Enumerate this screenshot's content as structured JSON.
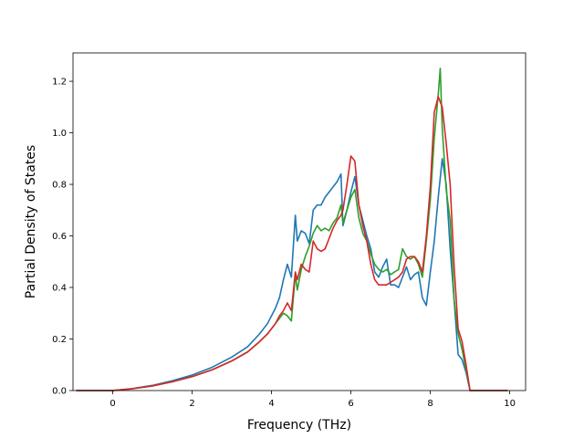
{
  "chart_data": {
    "type": "line",
    "title": "",
    "xlabel": "Frequency (THz)",
    "ylabel": "Partial Density of States",
    "xlim": [
      -1.0,
      10.4
    ],
    "ylim": [
      0.0,
      1.31
    ],
    "xticks": [
      0,
      2,
      4,
      6,
      8,
      10
    ],
    "yticks": [
      0.0,
      0.2,
      0.4,
      0.6,
      0.8,
      1.0,
      1.2
    ],
    "xtick_labels": [
      "0",
      "2",
      "4",
      "6",
      "8",
      "10"
    ],
    "ytick_labels": [
      "0.0",
      "0.2",
      "0.4",
      "0.6",
      "0.8",
      "1.0",
      "1.2"
    ],
    "grid": false,
    "series": [
      {
        "color": "#1f77b4",
        "x": [
          -0.92,
          0.0,
          0.5,
          1.0,
          1.5,
          2.0,
          2.5,
          3.0,
          3.4,
          3.7,
          3.9,
          4.1,
          4.2,
          4.3,
          4.4,
          4.5,
          4.6,
          4.65,
          4.75,
          4.85,
          4.95,
          5.05,
          5.15,
          5.25,
          5.35,
          5.45,
          5.55,
          5.65,
          5.75,
          5.8,
          5.9,
          6.0,
          6.1,
          6.2,
          6.3,
          6.4,
          6.5,
          6.6,
          6.7,
          6.8,
          6.9,
          7.0,
          7.1,
          7.2,
          7.3,
          7.4,
          7.5,
          7.6,
          7.7,
          7.8,
          7.9,
          8.0,
          8.1,
          8.2,
          8.3,
          8.4,
          8.5,
          8.6,
          8.7,
          8.8,
          8.9,
          9.0,
          9.2,
          9.5,
          9.95
        ],
        "y": [
          0.0,
          0.0,
          0.008,
          0.02,
          0.038,
          0.06,
          0.09,
          0.13,
          0.17,
          0.22,
          0.26,
          0.32,
          0.36,
          0.43,
          0.49,
          0.44,
          0.68,
          0.58,
          0.62,
          0.61,
          0.57,
          0.7,
          0.72,
          0.72,
          0.75,
          0.77,
          0.79,
          0.81,
          0.84,
          0.64,
          0.7,
          0.77,
          0.83,
          0.72,
          0.66,
          0.6,
          0.55,
          0.46,
          0.44,
          0.48,
          0.51,
          0.41,
          0.41,
          0.4,
          0.44,
          0.48,
          0.43,
          0.45,
          0.46,
          0.36,
          0.33,
          0.46,
          0.58,
          0.75,
          0.9,
          0.8,
          0.55,
          0.35,
          0.14,
          0.12,
          0.07,
          0.0,
          0.0,
          0.0,
          0.0
        ]
      },
      {
        "color": "#2ca02c",
        "x": [
          -0.92,
          0.0,
          0.5,
          1.0,
          1.5,
          2.0,
          2.5,
          3.0,
          3.4,
          3.7,
          3.9,
          4.1,
          4.2,
          4.3,
          4.4,
          4.5,
          4.6,
          4.65,
          4.75,
          4.85,
          4.95,
          5.05,
          5.15,
          5.25,
          5.35,
          5.45,
          5.55,
          5.65,
          5.75,
          5.8,
          5.9,
          6.0,
          6.1,
          6.2,
          6.3,
          6.4,
          6.5,
          6.6,
          6.7,
          6.8,
          6.9,
          7.0,
          7.1,
          7.2,
          7.3,
          7.4,
          7.5,
          7.6,
          7.7,
          7.8,
          7.9,
          8.0,
          8.1,
          8.2,
          8.25,
          8.3,
          8.4,
          8.5,
          8.6,
          8.7,
          8.8,
          8.9,
          9.0,
          9.2,
          9.5,
          9.95
        ],
        "y": [
          0.0,
          0.0,
          0.007,
          0.018,
          0.034,
          0.054,
          0.08,
          0.115,
          0.15,
          0.19,
          0.22,
          0.26,
          0.28,
          0.3,
          0.29,
          0.27,
          0.45,
          0.39,
          0.47,
          0.52,
          0.56,
          0.61,
          0.64,
          0.62,
          0.63,
          0.62,
          0.65,
          0.67,
          0.72,
          0.65,
          0.7,
          0.75,
          0.78,
          0.67,
          0.61,
          0.58,
          0.53,
          0.49,
          0.47,
          0.46,
          0.47,
          0.45,
          0.46,
          0.47,
          0.55,
          0.52,
          0.51,
          0.52,
          0.49,
          0.44,
          0.58,
          0.74,
          0.98,
          1.15,
          1.25,
          1.02,
          0.78,
          0.66,
          0.35,
          0.22,
          0.16,
          0.08,
          0.0,
          0.0,
          0.0,
          0.0
        ]
      },
      {
        "color": "#d62728",
        "x": [
          -0.92,
          0.0,
          0.5,
          1.0,
          1.5,
          2.0,
          2.5,
          3.0,
          3.4,
          3.7,
          3.9,
          4.1,
          4.2,
          4.3,
          4.4,
          4.5,
          4.6,
          4.65,
          4.75,
          4.85,
          4.95,
          5.05,
          5.15,
          5.25,
          5.35,
          5.45,
          5.55,
          5.65,
          5.75,
          5.8,
          5.9,
          6.0,
          6.1,
          6.2,
          6.3,
          6.4,
          6.5,
          6.6,
          6.7,
          6.8,
          6.9,
          7.0,
          7.1,
          7.2,
          7.3,
          7.4,
          7.5,
          7.6,
          7.7,
          7.8,
          7.9,
          8.0,
          8.1,
          8.2,
          8.3,
          8.4,
          8.5,
          8.6,
          8.7,
          8.8,
          8.9,
          9.0,
          9.2,
          9.5,
          9.95
        ],
        "y": [
          0.0,
          0.0,
          0.007,
          0.018,
          0.034,
          0.054,
          0.08,
          0.115,
          0.15,
          0.19,
          0.22,
          0.26,
          0.29,
          0.31,
          0.34,
          0.31,
          0.46,
          0.43,
          0.49,
          0.47,
          0.46,
          0.58,
          0.55,
          0.54,
          0.55,
          0.59,
          0.63,
          0.66,
          0.68,
          0.7,
          0.8,
          0.91,
          0.89,
          0.72,
          0.64,
          0.58,
          0.49,
          0.43,
          0.41,
          0.41,
          0.41,
          0.42,
          0.43,
          0.44,
          0.46,
          0.51,
          0.52,
          0.52,
          0.5,
          0.46,
          0.6,
          0.79,
          1.08,
          1.14,
          1.1,
          0.96,
          0.8,
          0.48,
          0.24,
          0.19,
          0.1,
          0.0,
          0.0,
          0.0,
          0.0
        ]
      }
    ]
  }
}
